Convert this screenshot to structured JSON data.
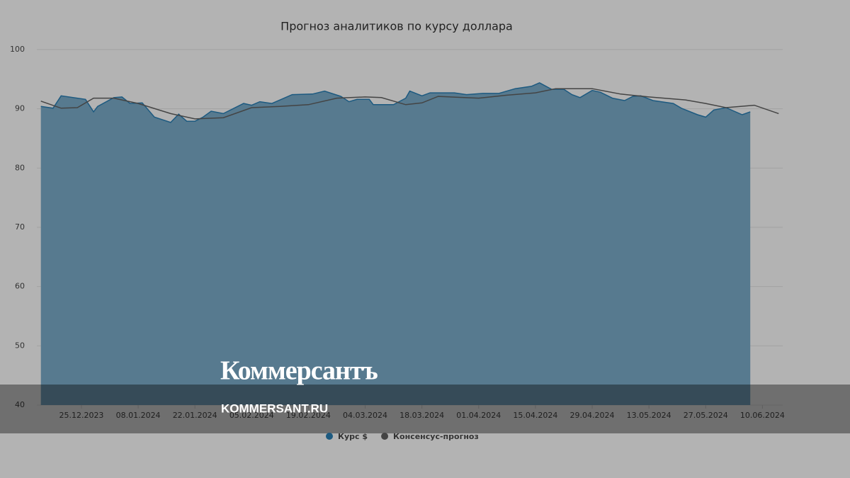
{
  "chart_data": {
    "type": "area-line",
    "title": "Прогноз аналитиков по курсу доллара",
    "xlim": [
      "14.12.2023",
      "15.06.2024"
    ],
    "xticks": [
      "25.12.2023",
      "08.01.2024",
      "22.01.2024",
      "05.02.2024",
      "19.02.2024",
      "04.03.2024",
      "18.03.2024",
      "01.04.2024",
      "15.04.2024",
      "29.04.2024",
      "13.05.2024",
      "27.05.2024",
      "10.06.2024"
    ],
    "ylim": [
      40,
      100
    ],
    "yticks": [
      40,
      50,
      60,
      70,
      80,
      90,
      100
    ],
    "grid": true,
    "series": [
      {
        "name": "Курс $",
        "color": "#1d5a80",
        "x": [
          "15.12.2023",
          "18.12.2023",
          "20.12.2023",
          "26.12.2023",
          "28.12.2023",
          "29.12.2023",
          "02.01.2024",
          "04.01.2024",
          "06.01.2024",
          "09.01.2024",
          "12.01.2024",
          "16.01.2024",
          "18.01.2024",
          "20.01.2024",
          "22.01.2024",
          "24.01.2024",
          "26.01.2024",
          "29.01.2024",
          "03.02.2024",
          "05.02.2024",
          "07.02.2024",
          "10.02.2024",
          "15.02.2024",
          "20.02.2024",
          "23.02.2024",
          "27.02.2024",
          "29.02.2024",
          "02.03.2024",
          "05.03.2024",
          "06.03.2024",
          "11.03.2024",
          "14.03.2024",
          "15.03.2024",
          "18.03.2024",
          "20.03.2024",
          "22.03.2024",
          "26.03.2024",
          "29.03.2024",
          "02.04.2024",
          "06.04.2024",
          "10.04.2024",
          "14.04.2024",
          "16.04.2024",
          "19.04.2024",
          "22.04.2024",
          "24.04.2024",
          "26.04.2024",
          "29.04.2024",
          "01.05.2024",
          "04.05.2024",
          "07.05.2024",
          "09.05.2024",
          "11.05.2024",
          "14.05.2024",
          "19.05.2024",
          "21.05.2024",
          "25.05.2024",
          "27.05.2024",
          "29.05.2024",
          "01.06.2024",
          "05.06.2024",
          "07.06.2024"
        ],
        "values": [
          90.4,
          90.1,
          92.2,
          91.6,
          89.5,
          90.4,
          91.9,
          92.0,
          90.9,
          91.0,
          88.6,
          87.7,
          89.1,
          87.9,
          87.9,
          88.6,
          89.6,
          89.2,
          90.9,
          90.6,
          91.2,
          90.9,
          92.4,
          92.5,
          93.0,
          92.1,
          91.2,
          91.6,
          91.6,
          90.7,
          90.7,
          91.8,
          93.0,
          92.2,
          92.7,
          92.7,
          92.7,
          92.4,
          92.6,
          92.6,
          93.4,
          93.8,
          94.4,
          93.3,
          93.3,
          92.4,
          91.9,
          93.1,
          92.8,
          91.8,
          91.4,
          92.1,
          92.2,
          91.4,
          90.9,
          90.1,
          89.0,
          88.6,
          89.8,
          90.2,
          89.0,
          89.5
        ]
      },
      {
        "name": "Консенсус-прогноз",
        "color": "#444444",
        "x": [
          "15.12.2023",
          "20.12.2023",
          "24.12.2023",
          "28.12.2023",
          "02.01.2024",
          "08.01.2024",
          "16.01.2024",
          "22.01.2024",
          "29.01.2024",
          "05.02.2024",
          "12.02.2024",
          "19.02.2024",
          "26.02.2024",
          "04.03.2024",
          "08.03.2024",
          "14.03.2024",
          "18.03.2024",
          "22.03.2024",
          "01.04.2024",
          "08.04.2024",
          "15.04.2024",
          "20.04.2024",
          "29.04.2024",
          "06.05.2024",
          "13.05.2024",
          "22.05.2024",
          "27.05.2024",
          "01.06.2024",
          "08.06.2024",
          "14.06.2024"
        ],
        "values": [
          91.3,
          90.1,
          90.2,
          91.8,
          91.8,
          90.9,
          89.2,
          88.3,
          88.5,
          90.2,
          90.4,
          90.7,
          91.8,
          92.0,
          91.9,
          90.7,
          91.0,
          92.1,
          91.8,
          92.3,
          92.7,
          93.4,
          93.4,
          92.5,
          92.0,
          91.5,
          90.9,
          90.2,
          90.6,
          89.2
        ]
      }
    ]
  },
  "watermark": {
    "logo": "Коммерсантъ",
    "url": "KOMMERSANT.RU"
  }
}
